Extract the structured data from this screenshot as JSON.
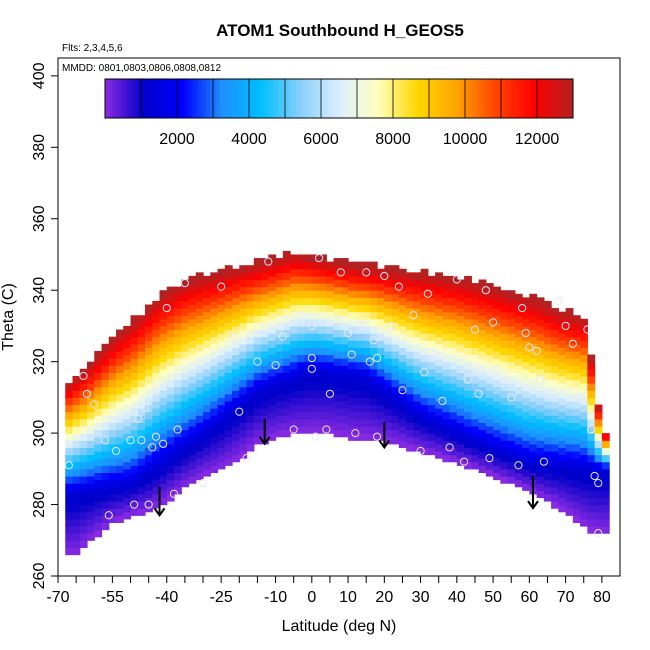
{
  "chart_data": {
    "type": "heatmap",
    "title": "ATOM1 Southbound H_GEOS5",
    "flights_note": "Flts: 2,3,4,5,6",
    "dates_note": "MMDD: 0801,0803,0806,0808,0812",
    "xlabel": "Latitude (deg N)",
    "ylabel": "Theta (C)",
    "xlim": [
      -70,
      85
    ],
    "ylim": [
      260,
      405
    ],
    "x_ticks": [
      -70,
      -55,
      -40,
      -25,
      -10,
      0,
      10,
      20,
      30,
      40,
      50,
      60,
      70,
      80
    ],
    "x_tick_labels": [
      "-70",
      "-55",
      "-40",
      "-25",
      "-10",
      "0",
      "10",
      "20",
      "30",
      "40",
      "50",
      "60",
      "70",
      "80"
    ],
    "x_minor_ticks": [
      -65,
      -60,
      -50,
      -45,
      -35,
      -30,
      -20,
      -15,
      -5,
      5,
      15,
      25,
      35,
      45,
      55,
      65,
      75
    ],
    "y_ticks": [
      260,
      280,
      300,
      320,
      340,
      360,
      380,
      400
    ],
    "y_tick_labels": [
      "260",
      "280",
      "300",
      "320",
      "340",
      "360",
      "380",
      "400"
    ],
    "colorbar": {
      "range": [
        0,
        13000
      ],
      "ticks": [
        2000,
        4000,
        6000,
        8000,
        10000,
        12000
      ],
      "tick_labels": [
        "2000",
        "4000",
        "6000",
        "8000",
        "10000",
        "12000"
      ],
      "palette": [
        "#8a2be2",
        "#0000c8",
        "#0000ff",
        "#1e90ff",
        "#00bfff",
        "#87cefa",
        "#dbeeff",
        "#ffffc0",
        "#ffd700",
        "#ffa500",
        "#ff4500",
        "#ff0000",
        "#b22222"
      ]
    },
    "domain_top": [
      [
        -68,
        313
      ],
      [
        -62,
        318
      ],
      [
        -55,
        326
      ],
      [
        -48,
        332
      ],
      [
        -42,
        338
      ],
      [
        -35,
        342
      ],
      [
        -28,
        344
      ],
      [
        -20,
        346
      ],
      [
        -12,
        348
      ],
      [
        -5,
        350
      ],
      [
        0,
        349
      ],
      [
        5,
        348
      ],
      [
        10,
        347
      ],
      [
        18,
        346
      ],
      [
        25,
        345
      ],
      [
        32,
        344
      ],
      [
        40,
        343
      ],
      [
        48,
        341
      ],
      [
        55,
        339
      ],
      [
        62,
        337
      ],
      [
        68,
        334
      ],
      [
        75,
        332
      ],
      [
        78,
        315
      ],
      [
        80,
        300
      ]
    ],
    "domain_bottom": [
      [
        -65,
        266
      ],
      [
        -60,
        271
      ],
      [
        -55,
        275
      ],
      [
        -50,
        277
      ],
      [
        -45,
        278
      ],
      [
        -40,
        281
      ],
      [
        -35,
        285
      ],
      [
        -30,
        288
      ],
      [
        -25,
        290
      ],
      [
        -20,
        293
      ],
      [
        -15,
        297
      ],
      [
        -10,
        299
      ],
      [
        -5,
        300
      ],
      [
        0,
        300
      ],
      [
        5,
        300
      ],
      [
        10,
        299
      ],
      [
        20,
        298
      ],
      [
        30,
        295
      ],
      [
        40,
        292
      ],
      [
        50,
        288
      ],
      [
        60,
        284
      ],
      [
        70,
        278
      ],
      [
        78,
        272
      ],
      [
        80,
        272
      ]
    ],
    "field_model": "value(lat, theta) = 13000 * (theta - theta_trop(lat)) / (theta_top(lat) - theta_trop(lat)), with theta_trop near 283 (SH), 315 (tropics), 290 (NH)",
    "tropopause_theta": [
      [
        -70,
        283
      ],
      [
        -50,
        286
      ],
      [
        -30,
        300
      ],
      [
        -15,
        312
      ],
      [
        0,
        318
      ],
      [
        15,
        316
      ],
      [
        30,
        305
      ],
      [
        45,
        298
      ],
      [
        60,
        292
      ],
      [
        80,
        290
      ]
    ],
    "observations": [
      [
        -67,
        291
      ],
      [
        -63,
        316
      ],
      [
        -62,
        311
      ],
      [
        -60,
        308
      ],
      [
        -57,
        298
      ],
      [
        -56,
        277
      ],
      [
        -54,
        295
      ],
      [
        -52,
        305
      ],
      [
        -50,
        298
      ],
      [
        -49,
        280
      ],
      [
        -48,
        304
      ],
      [
        -47,
        298
      ],
      [
        -46,
        307
      ],
      [
        -45,
        280
      ],
      [
        -44,
        296
      ],
      [
        -43,
        299
      ],
      [
        -42,
        278
      ],
      [
        -41,
        297
      ],
      [
        -40,
        335
      ],
      [
        -38,
        283
      ],
      [
        -37,
        301
      ],
      [
        -35,
        342
      ],
      [
        -30,
        286
      ],
      [
        -25,
        341
      ],
      [
        -22,
        327
      ],
      [
        -20,
        306
      ],
      [
        -18,
        293
      ],
      [
        -15,
        320
      ],
      [
        -12,
        348
      ],
      [
        -10,
        319
      ],
      [
        -8,
        327
      ],
      [
        -5,
        301
      ],
      [
        -3,
        333
      ],
      [
        0,
        330
      ],
      [
        0,
        321
      ],
      [
        0,
        318
      ],
      [
        1,
        299
      ],
      [
        2,
        349
      ],
      [
        4,
        301
      ],
      [
        5,
        311
      ],
      [
        8,
        345
      ],
      [
        10,
        328
      ],
      [
        11,
        322
      ],
      [
        12,
        300
      ],
      [
        14,
        330
      ],
      [
        15,
        345
      ],
      [
        16,
        320
      ],
      [
        17,
        326
      ],
      [
        18,
        299
      ],
      [
        18,
        321
      ],
      [
        20,
        344
      ],
      [
        22,
        330
      ],
      [
        24,
        341
      ],
      [
        25,
        312
      ],
      [
        28,
        333
      ],
      [
        30,
        295
      ],
      [
        31,
        317
      ],
      [
        32,
        339
      ],
      [
        34,
        322
      ],
      [
        36,
        309
      ],
      [
        38,
        296
      ],
      [
        40,
        343
      ],
      [
        42,
        292
      ],
      [
        43,
        315
      ],
      [
        45,
        329
      ],
      [
        46,
        311
      ],
      [
        48,
        340
      ],
      [
        49,
        293
      ],
      [
        50,
        331
      ],
      [
        51,
        318
      ],
      [
        53,
        314
      ],
      [
        55,
        310
      ],
      [
        57,
        291
      ],
      [
        58,
        335
      ],
      [
        59,
        328
      ],
      [
        60,
        324
      ],
      [
        62,
        323
      ],
      [
        63,
        315
      ],
      [
        64,
        292
      ],
      [
        65,
        311
      ],
      [
        68,
        337
      ],
      [
        70,
        330
      ],
      [
        72,
        325
      ],
      [
        74,
        310
      ],
      [
        76,
        329
      ],
      [
        77,
        301
      ],
      [
        78,
        288
      ],
      [
        79,
        286
      ],
      [
        79,
        272
      ]
    ],
    "arrows": [
      [
        -42,
        285,
        277
      ],
      [
        -13,
        304,
        297
      ],
      [
        20,
        303,
        296
      ],
      [
        61,
        288,
        279
      ]
    ]
  }
}
